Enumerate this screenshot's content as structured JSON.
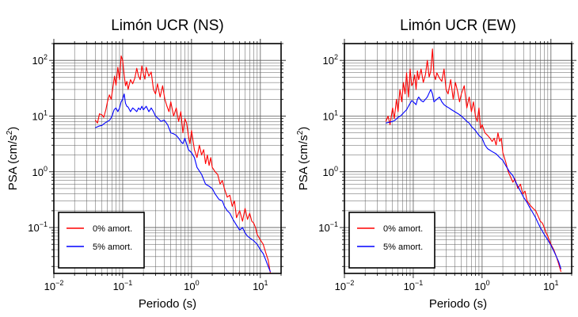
{
  "chart_data": [
    {
      "type": "line",
      "title": "Limón UCR (NS)",
      "xlabel": "Periodo (s)",
      "ylabel_main": "PSA (cm/s",
      "ylabel_sup": "2",
      "ylabel_end": ")",
      "xscale": "log",
      "yscale": "log",
      "xlim": [
        0.01,
        20
      ],
      "ylim": [
        0.015,
        200
      ],
      "grid": true,
      "legend_position": "bottom-left",
      "x_ticks": [
        {
          "base": "10",
          "exp": "−2",
          "value": 0.01
        },
        {
          "base": "10",
          "exp": "−1",
          "value": 0.1
        },
        {
          "base": "10",
          "exp": "0",
          "value": 1
        },
        {
          "base": "10",
          "exp": "1",
          "value": 10
        }
      ],
      "y_ticks": [
        {
          "base": "10",
          "exp": "−1",
          "value": 0.1
        },
        {
          "base": "10",
          "exp": "0",
          "value": 1
        },
        {
          "base": "10",
          "exp": "1",
          "value": 10
        },
        {
          "base": "10",
          "exp": "2",
          "value": 100
        }
      ],
      "series": [
        {
          "name": "0% amort.",
          "color": "#ff0000",
          "x": [
            0.04,
            0.043,
            0.046,
            0.05,
            0.053,
            0.057,
            0.06,
            0.064,
            0.068,
            0.072,
            0.076,
            0.08,
            0.085,
            0.09,
            0.095,
            0.1,
            0.105,
            0.11,
            0.115,
            0.12,
            0.13,
            0.14,
            0.15,
            0.16,
            0.17,
            0.18,
            0.19,
            0.2,
            0.21,
            0.22,
            0.24,
            0.26,
            0.28,
            0.3,
            0.32,
            0.35,
            0.38,
            0.41,
            0.44,
            0.47,
            0.5,
            0.55,
            0.6,
            0.65,
            0.7,
            0.75,
            0.8,
            0.85,
            0.9,
            0.95,
            1.0,
            1.1,
            1.2,
            1.3,
            1.4,
            1.5,
            1.6,
            1.7,
            1.8,
            1.9,
            2.0,
            2.2,
            2.4,
            2.6,
            2.8,
            3.0,
            3.3,
            3.6,
            3.9,
            4.2,
            4.5,
            5.0,
            5.5,
            6.0,
            6.5,
            7.0,
            7.5,
            8.0,
            8.5,
            9.0,
            10.0,
            11.0,
            12.0,
            13.0,
            14.0
          ],
          "y": [
            8.5,
            7.5,
            11,
            10.5,
            9.5,
            13,
            18,
            24,
            20,
            32,
            52,
            36,
            75,
            45,
            120,
            100,
            55,
            35,
            42,
            30,
            45,
            38,
            48,
            72,
            52,
            45,
            80,
            58,
            46,
            75,
            52,
            62,
            30,
            25,
            38,
            22,
            35,
            20,
            15,
            12,
            18,
            10,
            14,
            8,
            12,
            5,
            9,
            7.5,
            4.5,
            3.2,
            5.5,
            2.5,
            1.8,
            3,
            2,
            2.5,
            1.4,
            2,
            1.3,
            1.8,
            1.2,
            1,
            0.9,
            0.6,
            0.7,
            0.5,
            0.35,
            0.38,
            0.24,
            0.3,
            0.15,
            0.2,
            0.13,
            0.22,
            0.14,
            0.18,
            0.13,
            0.12,
            0.1,
            0.075,
            0.06,
            0.05,
            0.035,
            0.026,
            0.015
          ]
        },
        {
          "name": "5% amort.",
          "color": "#0000ff",
          "x": [
            0.04,
            0.045,
            0.05,
            0.055,
            0.06,
            0.065,
            0.07,
            0.075,
            0.08,
            0.085,
            0.09,
            0.095,
            0.1,
            0.105,
            0.11,
            0.115,
            0.12,
            0.13,
            0.14,
            0.15,
            0.16,
            0.17,
            0.18,
            0.19,
            0.2,
            0.22,
            0.24,
            0.26,
            0.28,
            0.3,
            0.33,
            0.36,
            0.4,
            0.45,
            0.5,
            0.55,
            0.6,
            0.65,
            0.7,
            0.75,
            0.8,
            0.9,
            1.0,
            1.1,
            1.2,
            1.4,
            1.6,
            1.8,
            2.0,
            2.2,
            2.5,
            2.8,
            3.0,
            3.3,
            3.6,
            4.0,
            4.5,
            5.0,
            5.5,
            6.0,
            6.5,
            7.0,
            8.0,
            9.0,
            10.0,
            11.0,
            12.0,
            13.0,
            14.0
          ],
          "y": [
            6.2,
            6.6,
            6.8,
            7.5,
            8,
            8.5,
            10,
            13,
            14,
            12,
            14,
            18,
            20,
            25,
            17,
            15,
            14.5,
            12,
            14,
            13,
            12,
            14,
            13,
            15,
            13,
            15,
            12,
            14,
            12,
            10,
            9,
            8,
            8.5,
            7,
            5,
            4.8,
            4.5,
            4,
            3.5,
            3.2,
            4,
            2.5,
            2.2,
            1.8,
            1.2,
            0.9,
            0.6,
            0.55,
            0.5,
            0.4,
            0.32,
            0.3,
            0.24,
            0.2,
            0.18,
            0.14,
            0.11,
            0.09,
            0.1,
            0.08,
            0.07,
            0.065,
            0.058,
            0.05,
            0.04,
            0.034,
            0.026,
            0.02,
            0.016
          ]
        }
      ]
    },
    {
      "type": "line",
      "title": "Limón UCR (EW)",
      "xlabel": "Periodo (s)",
      "ylabel_main": "PSA (cm/s",
      "ylabel_sup": "2",
      "ylabel_end": ")",
      "xscale": "log",
      "yscale": "log",
      "xlim": [
        0.01,
        20
      ],
      "ylim": [
        0.015,
        200
      ],
      "grid": true,
      "legend_position": "bottom-left",
      "x_ticks": [
        {
          "base": "10",
          "exp": "−2",
          "value": 0.01
        },
        {
          "base": "10",
          "exp": "−1",
          "value": 0.1
        },
        {
          "base": "10",
          "exp": "0",
          "value": 1
        },
        {
          "base": "10",
          "exp": "1",
          "value": 10
        }
      ],
      "y_ticks": [
        {
          "base": "10",
          "exp": "−1",
          "value": 0.1
        },
        {
          "base": "10",
          "exp": "0",
          "value": 1
        },
        {
          "base": "10",
          "exp": "1",
          "value": 10
        },
        {
          "base": "10",
          "exp": "2",
          "value": 100
        }
      ],
      "series": [
        {
          "name": "0% amort.",
          "color": "#ff0000",
          "x": [
            0.04,
            0.043,
            0.046,
            0.05,
            0.053,
            0.057,
            0.06,
            0.064,
            0.068,
            0.072,
            0.076,
            0.08,
            0.085,
            0.09,
            0.095,
            0.1,
            0.105,
            0.11,
            0.115,
            0.12,
            0.13,
            0.14,
            0.15,
            0.16,
            0.17,
            0.18,
            0.19,
            0.2,
            0.21,
            0.22,
            0.24,
            0.26,
            0.28,
            0.3,
            0.32,
            0.35,
            0.38,
            0.41,
            0.44,
            0.47,
            0.5,
            0.55,
            0.6,
            0.65,
            0.7,
            0.75,
            0.8,
            0.85,
            0.9,
            0.95,
            1.0,
            1.1,
            1.2,
            1.3,
            1.4,
            1.5,
            1.6,
            1.7,
            1.8,
            1.9,
            2.0,
            2.2,
            2.4,
            2.6,
            2.8,
            3.0,
            3.3,
            3.6,
            3.9,
            4.2,
            4.5,
            5.0,
            5.5,
            6.0,
            6.5,
            7.0,
            7.5,
            8.0,
            8.5,
            9.0,
            10.0,
            11.0,
            12.0,
            13.0,
            14.0
          ],
          "y": [
            8,
            10,
            7,
            14,
            9,
            20,
            12,
            30,
            18,
            40,
            25,
            60,
            22,
            70,
            35,
            40,
            55,
            30,
            65,
            45,
            70,
            40,
            55,
            100,
            50,
            65,
            160,
            55,
            45,
            60,
            48,
            42,
            70,
            30,
            25,
            45,
            20,
            40,
            28,
            18,
            25,
            35,
            14,
            22,
            12,
            18,
            10,
            8,
            14,
            6,
            7,
            5,
            4.5,
            4,
            3.5,
            4,
            3,
            5,
            3.5,
            4,
            2.2,
            1.5,
            1,
            0.8,
            0.65,
            0.75,
            0.5,
            0.6,
            0.4,
            0.45,
            0.3,
            0.25,
            0.22,
            0.2,
            0.16,
            0.13,
            0.12,
            0.1,
            0.08,
            0.07,
            0.05,
            0.04,
            0.03,
            0.022,
            0.016
          ]
        },
        {
          "name": "5% amort.",
          "color": "#0000ff",
          "x": [
            0.04,
            0.045,
            0.05,
            0.055,
            0.06,
            0.065,
            0.07,
            0.075,
            0.08,
            0.085,
            0.09,
            0.095,
            0.1,
            0.105,
            0.11,
            0.115,
            0.12,
            0.13,
            0.14,
            0.15,
            0.16,
            0.17,
            0.18,
            0.19,
            0.2,
            0.22,
            0.24,
            0.26,
            0.28,
            0.3,
            0.33,
            0.36,
            0.4,
            0.45,
            0.5,
            0.55,
            0.6,
            0.65,
            0.7,
            0.75,
            0.8,
            0.9,
            1.0,
            1.1,
            1.2,
            1.4,
            1.6,
            1.8,
            2.0,
            2.2,
            2.5,
            2.8,
            3.0,
            3.3,
            3.6,
            4.0,
            4.5,
            5.0,
            5.5,
            6.0,
            6.5,
            7.0,
            8.0,
            9.0,
            10.0,
            11.0,
            12.0,
            13.0,
            14.0
          ],
          "y": [
            7.5,
            7.8,
            8,
            8.5,
            9.5,
            10,
            11,
            12,
            13,
            15,
            17,
            19,
            18,
            17,
            16,
            20,
            22,
            19,
            18,
            20,
            22,
            26,
            30,
            25,
            18,
            20,
            22,
            18,
            16,
            15,
            14,
            13,
            12,
            11,
            10,
            9,
            8,
            7.5,
            6.5,
            6,
            5.5,
            4.5,
            4,
            3,
            2.6,
            2.3,
            2.1,
            1.8,
            1.6,
            1.3,
            1,
            0.85,
            0.7,
            0.55,
            0.45,
            0.35,
            0.28,
            0.22,
            0.18,
            0.15,
            0.12,
            0.1,
            0.075,
            0.06,
            0.048,
            0.038,
            0.03,
            0.024,
            0.018
          ]
        }
      ]
    }
  ]
}
